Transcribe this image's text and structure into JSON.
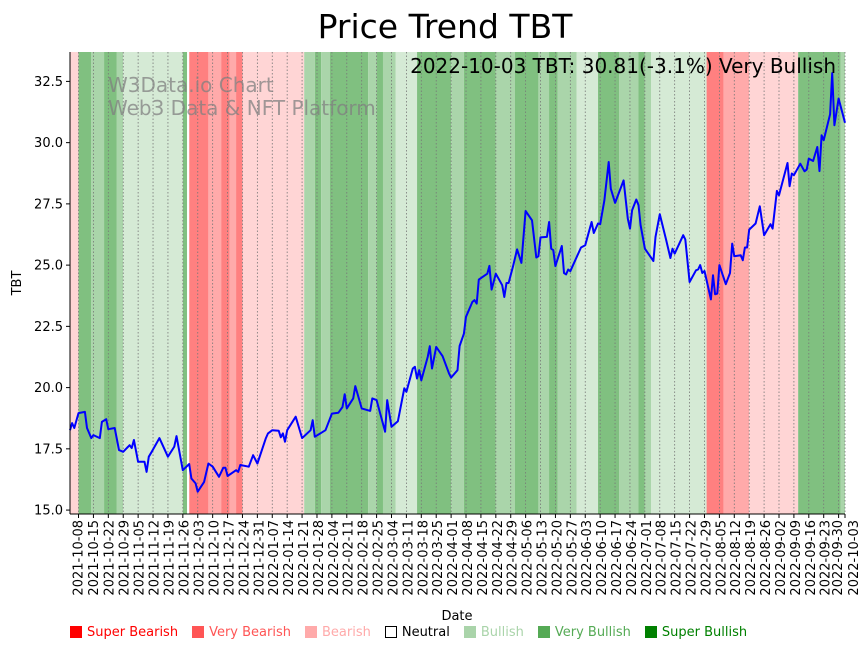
{
  "chart_data": {
    "type": "line",
    "title": "Price Trend TBT",
    "xlabel": "Date",
    "ylabel": "TBT",
    "annotation": "2022-10-03 TBT: 30.81(-3.1%) Very Bullish",
    "watermark": [
      "W3Data.io Chart",
      "Web3 Data & NFT Platform"
    ],
    "start_date": "2021-10-04",
    "end_date": "2022-10-03",
    "ylim": [
      14.84,
      33.7
    ],
    "yticks": [
      15.0,
      17.5,
      20.0,
      22.5,
      25.0,
      27.5,
      30.0,
      32.5
    ],
    "ytick_labels": [
      "15.0",
      "17.5",
      "20.0",
      "22.5",
      "25.0",
      "27.5",
      "30.0",
      "32.5"
    ],
    "xtick_labels": [
      "2021-10-08",
      "2021-10-15",
      "2021-10-22",
      "2021-10-29",
      "2021-11-05",
      "2021-11-12",
      "2021-11-19",
      "2021-11-26",
      "2021-12-03",
      "2021-12-10",
      "2021-12-17",
      "2021-12-24",
      "2021-12-31",
      "2022-01-07",
      "2022-01-14",
      "2022-01-21",
      "2022-01-28",
      "2022-02-04",
      "2022-02-11",
      "2022-02-18",
      "2022-02-25",
      "2022-03-04",
      "2022-03-11",
      "2022-03-18",
      "2022-03-25",
      "2022-04-01",
      "2022-04-08",
      "2022-04-15",
      "2022-04-22",
      "2022-04-29",
      "2022-05-06",
      "2022-05-13",
      "2022-05-20",
      "2022-05-27",
      "2022-06-03",
      "2022-06-10",
      "2022-06-17",
      "2022-06-24",
      "2022-07-01",
      "2022-07-08",
      "2022-07-15",
      "2022-07-22",
      "2022-07-29",
      "2022-08-05",
      "2022-08-12",
      "2022-08-19",
      "2022-08-26",
      "2022-09-02",
      "2022-09-09",
      "2022-09-16",
      "2022-09-23",
      "2022-09-30",
      "2022-10-03"
    ],
    "grid": "vertical-dotted",
    "legend_placement": "bottom",
    "legend": [
      {
        "label": "Super Bearish",
        "key": "super_bearish"
      },
      {
        "label": "Very Bearish",
        "key": "very_bearish"
      },
      {
        "label": "Bearish",
        "key": "bearish"
      },
      {
        "label": "Neutral",
        "key": "neutral"
      },
      {
        "label": "Bullish",
        "key": "bullish"
      },
      {
        "label": "Very Bullish",
        "key": "very_bullish"
      },
      {
        "label": "Super Bullish",
        "key": "super_bullish"
      }
    ],
    "colors": {
      "line": "#0000ff",
      "super_bearish": "#ff0000",
      "very_bearish": "#ff5555",
      "bearish": "#ffaaaa",
      "neutral": "#ffffff",
      "bullish": "#aad4aa",
      "very_bullish": "#55aa55",
      "super_bullish": "#008000"
    },
    "band_colors": {
      "super_bearish": "#ff8080",
      "very_bearish": "#ffaaaa",
      "bearish": "#ffd5d5",
      "neutral": "#ffffff",
      "bullish": "#d5ead5",
      "very_bullish": "#aad5aa",
      "super_bullish": "#80c080"
    },
    "sentiment_bands": [
      {
        "start": "2021-10-04",
        "sentiment": "bearish"
      },
      {
        "start": "2021-10-08",
        "sentiment": "super_bullish"
      },
      {
        "start": "2021-10-14",
        "sentiment": "very_bullish"
      },
      {
        "start": "2021-10-20",
        "sentiment": "super_bullish"
      },
      {
        "start": "2021-10-26",
        "sentiment": "very_bullish"
      },
      {
        "start": "2021-10-29",
        "sentiment": "bullish"
      },
      {
        "start": "2021-11-26",
        "sentiment": "super_bullish"
      },
      {
        "start": "2021-11-28",
        "sentiment": "neutral"
      },
      {
        "start": "2021-11-29",
        "sentiment": "super_bearish"
      },
      {
        "start": "2021-12-08",
        "sentiment": "very_bearish"
      },
      {
        "start": "2021-12-14",
        "sentiment": "super_bearish"
      },
      {
        "start": "2021-12-18",
        "sentiment": "very_bearish"
      },
      {
        "start": "2021-12-21",
        "sentiment": "super_bearish"
      },
      {
        "start": "2021-12-24",
        "sentiment": "bearish"
      },
      {
        "start": "2022-01-22",
        "sentiment": "very_bullish"
      },
      {
        "start": "2022-01-27",
        "sentiment": "super_bullish"
      },
      {
        "start": "2022-01-30",
        "sentiment": "very_bullish"
      },
      {
        "start": "2022-02-03",
        "sentiment": "super_bullish"
      },
      {
        "start": "2022-02-21",
        "sentiment": "very_bullish"
      },
      {
        "start": "2022-02-25",
        "sentiment": "super_bullish"
      },
      {
        "start": "2022-02-28",
        "sentiment": "very_bullish"
      },
      {
        "start": "2022-03-06",
        "sentiment": "bullish"
      },
      {
        "start": "2022-03-16",
        "sentiment": "super_bullish"
      },
      {
        "start": "2022-04-01",
        "sentiment": "very_bullish"
      },
      {
        "start": "2022-04-07",
        "sentiment": "super_bullish"
      },
      {
        "start": "2022-04-22",
        "sentiment": "very_bullish"
      },
      {
        "start": "2022-05-01",
        "sentiment": "super_bullish"
      },
      {
        "start": "2022-05-12",
        "sentiment": "very_bullish"
      },
      {
        "start": "2022-05-17",
        "sentiment": "super_bullish"
      },
      {
        "start": "2022-05-21",
        "sentiment": "very_bullish"
      },
      {
        "start": "2022-05-30",
        "sentiment": "bullish"
      },
      {
        "start": "2022-06-09",
        "sentiment": "super_bullish"
      },
      {
        "start": "2022-06-19",
        "sentiment": "very_bullish"
      },
      {
        "start": "2022-06-28",
        "sentiment": "super_bullish"
      },
      {
        "start": "2022-07-01",
        "sentiment": "very_bullish"
      },
      {
        "start": "2022-07-04",
        "sentiment": "bullish"
      },
      {
        "start": "2022-07-30",
        "sentiment": "super_bearish"
      },
      {
        "start": "2022-08-07",
        "sentiment": "very_bearish"
      },
      {
        "start": "2022-08-19",
        "sentiment": "bearish"
      },
      {
        "start": "2022-09-11",
        "sentiment": "super_bullish"
      },
      {
        "start": "2022-10-01",
        "sentiment": "very_bullish"
      }
    ],
    "series": [
      {
        "name": "TBT",
        "day_offsets_from_start": [
          0,
          1,
          2,
          4,
          7,
          8,
          10,
          11,
          14,
          15,
          17,
          18,
          21,
          23,
          25,
          28,
          29,
          30,
          32,
          35,
          36,
          37,
          38,
          42,
          46,
          49,
          50,
          53,
          56,
          57,
          59,
          60,
          63,
          65,
          67,
          70,
          72,
          73,
          74,
          78,
          79,
          80,
          84,
          86,
          88,
          92,
          93,
          95,
          98,
          99,
          100,
          101,
          102,
          106,
          109,
          113,
          114,
          115,
          120,
          123,
          126,
          128,
          129,
          130,
          133,
          134,
          137,
          141,
          142,
          144,
          148,
          149,
          151,
          154,
          157,
          158,
          161,
          162,
          163,
          164,
          165,
          168,
          169,
          170,
          172,
          175,
          178,
          179,
          182,
          183,
          185,
          186,
          189,
          190,
          191,
          192,
          196,
          197,
          198,
          200,
          203,
          204,
          205,
          206,
          208,
          210,
          212,
          214,
          217,
          219,
          220,
          221,
          224,
          225,
          226,
          227,
          228,
          231,
          232,
          233,
          234,
          235,
          240,
          242,
          245,
          246,
          248,
          249,
          251,
          253,
          254,
          256,
          260,
          262,
          263,
          264,
          266,
          267,
          268,
          270,
          274,
          275,
          277,
          280,
          282,
          283,
          284,
          288,
          289,
          291,
          294,
          295,
          296,
          297,
          298,
          301,
          302,
          303,
          304,
          305,
          308,
          310,
          311,
          312,
          315,
          316,
          317,
          318,
          319,
          322,
          324,
          326,
          329,
          330,
          332,
          333,
          337,
          338,
          339,
          340,
          343,
          345,
          346,
          347,
          349,
          351,
          352,
          353,
          354,
          357,
          358,
          359,
          361,
          364
        ],
        "values": [
          18.26,
          18.55,
          18.35,
          18.96,
          19.01,
          18.35,
          17.94,
          18.06,
          17.94,
          18.6,
          18.71,
          18.3,
          18.35,
          17.45,
          17.38,
          17.65,
          17.53,
          17.86,
          16.97,
          16.97,
          16.56,
          17.18,
          17.32,
          17.94,
          17.18,
          17.59,
          18.02,
          16.63,
          16.88,
          16.29,
          16.09,
          15.75,
          16.15,
          16.9,
          16.77,
          16.36,
          16.73,
          16.73,
          16.39,
          16.63,
          16.56,
          16.84,
          16.77,
          17.24,
          16.9,
          17.94,
          18.13,
          18.26,
          18.24,
          17.97,
          18.13,
          17.79,
          18.26,
          18.81,
          17.94,
          18.26,
          18.67,
          17.99,
          18.26,
          18.94,
          18.97,
          19.21,
          19.73,
          19.15,
          19.56,
          20.06,
          19.15,
          19.05,
          19.56,
          19.49,
          18.2,
          19.49,
          18.4,
          18.63,
          19.97,
          19.83,
          20.78,
          20.85,
          20.37,
          20.71,
          20.3,
          21.25,
          21.69,
          20.78,
          21.66,
          21.28,
          20.58,
          20.41,
          20.71,
          21.7,
          22.2,
          22.89,
          23.5,
          23.57,
          23.43,
          24.41,
          24.65,
          24.97,
          24.0,
          24.65,
          24.18,
          23.7,
          24.27,
          24.27,
          24.93,
          25.64,
          25.09,
          27.21,
          26.83,
          25.31,
          25.36,
          26.13,
          26.15,
          26.76,
          25.67,
          25.61,
          24.96,
          25.78,
          24.68,
          24.62,
          24.82,
          24.75,
          25.72,
          25.81,
          26.76,
          26.31,
          26.7,
          26.67,
          27.65,
          29.21,
          28.12,
          27.54,
          28.46,
          26.9,
          26.49,
          27.24,
          27.68,
          27.45,
          26.63,
          25.67,
          25.17,
          26.15,
          27.08,
          26.02,
          25.29,
          25.67,
          25.47,
          26.22,
          26.05,
          24.31,
          24.79,
          24.82,
          25.0,
          24.68,
          24.76,
          23.6,
          24.59,
          23.81,
          23.84,
          25.0,
          24.22,
          24.68,
          25.88,
          25.36,
          25.4,
          25.2,
          25.72,
          25.72,
          26.45,
          26.7,
          27.4,
          26.22,
          26.67,
          26.49,
          28.03,
          27.85,
          29.17,
          28.22,
          28.74,
          28.67,
          29.14,
          28.83,
          28.9,
          29.35,
          29.25,
          29.82,
          28.84,
          30.3,
          30.1,
          31.16,
          32.84,
          30.71,
          31.8,
          30.81
        ]
      }
    ]
  }
}
